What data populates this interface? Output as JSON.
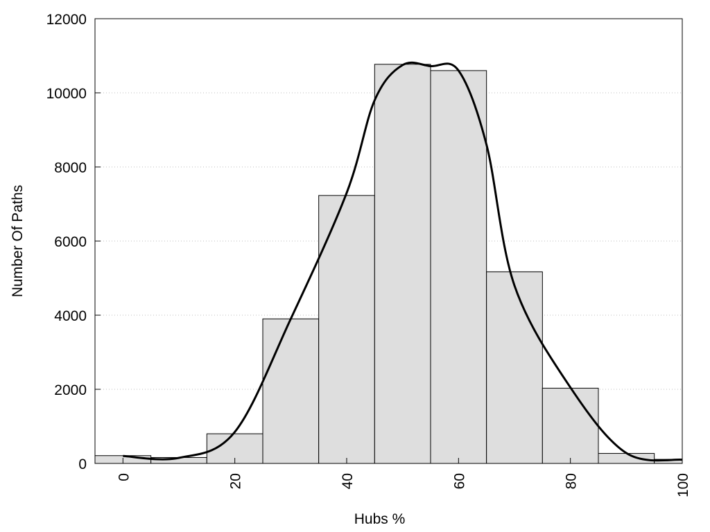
{
  "chart_data": {
    "type": "bar",
    "xlabel": "Hubs %",
    "ylabel": "Number Of Paths",
    "xlim": [
      -5,
      100
    ],
    "ylim": [
      0,
      12000
    ],
    "xticks": [
      0,
      20,
      40,
      60,
      80,
      100
    ],
    "yticks": [
      0,
      2000,
      4000,
      6000,
      8000,
      10000,
      12000
    ],
    "grid": "horizontal dotted",
    "bin_width": 10,
    "bins": [
      {
        "x": 0,
        "value": 210
      },
      {
        "x": 10,
        "value": 160
      },
      {
        "x": 20,
        "value": 800
      },
      {
        "x": 30,
        "value": 3900
      },
      {
        "x": 40,
        "value": 7230
      },
      {
        "x": 50,
        "value": 10770
      },
      {
        "x": 60,
        "value": 10600
      },
      {
        "x": 70,
        "value": 5170
      },
      {
        "x": 80,
        "value": 2030
      },
      {
        "x": 90,
        "value": 270
      },
      {
        "x": 100,
        "value": 110
      }
    ],
    "curve": [
      {
        "x": 0,
        "y": 200
      },
      {
        "x": 10,
        "y": 150
      },
      {
        "x": 20,
        "y": 850
      },
      {
        "x": 30,
        "y": 3900
      },
      {
        "x": 40,
        "y": 7300
      },
      {
        "x": 45,
        "y": 9800
      },
      {
        "x": 50,
        "y": 10750
      },
      {
        "x": 55,
        "y": 10720
      },
      {
        "x": 60,
        "y": 10600
      },
      {
        "x": 65,
        "y": 8600
      },
      {
        "x": 70,
        "y": 4800
      },
      {
        "x": 80,
        "y": 2050
      },
      {
        "x": 90,
        "y": 280
      },
      {
        "x": 100,
        "y": 100
      }
    ]
  }
}
